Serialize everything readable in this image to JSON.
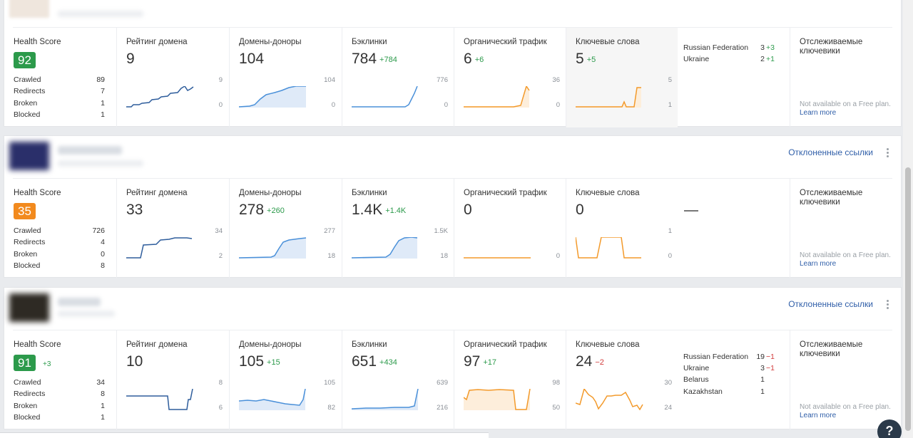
{
  "header": {
    "disavow_label": "Отклоненные ссылки"
  },
  "labels": {
    "health_score": "Health Score",
    "domain_rating": "Рейтинг домена",
    "ref_domains": "Домены-доноры",
    "backlinks": "Бэклинки",
    "organic_traffic": "Органический трафик",
    "keywords": "Ключевые слова",
    "tracked_keywords": "Отслеживаемые ключевики",
    "not_available": "Not available on a Free plan.",
    "learn_more": "Learn more",
    "crawled": "Crawled",
    "redirects": "Redirects",
    "broken": "Broken",
    "blocked": "Blocked"
  },
  "colors": {
    "green": "#2c9a4b",
    "orange": "#f28a1e",
    "blue_dark": "#2e5d9c",
    "blue_light": "#4a90d9",
    "traffic_orange": "#f39a2b",
    "red": "#d23c3c"
  },
  "projects": [
    {
      "health": {
        "score": "92",
        "delta": "",
        "color": "#2c9a4b",
        "crawled": "89",
        "redirects": "7",
        "broken": "1",
        "blocked": "1"
      },
      "dr": {
        "value": "9",
        "delta": "",
        "tick_max": "9",
        "tick_min": "0"
      },
      "rd": {
        "value": "104",
        "delta": "",
        "tick_max": "104",
        "tick_min": "0"
      },
      "bl": {
        "value": "784",
        "delta": "+784",
        "tick_max": "776",
        "tick_min": "0"
      },
      "ot": {
        "value": "6",
        "delta": "+6",
        "tick_max": "36",
        "tick_min": "0"
      },
      "kw": {
        "value": "5",
        "delta": "+5",
        "tick_max": "5",
        "tick_min": "1"
      },
      "countries": [
        {
          "name": "Russian Federation",
          "value": "3",
          "delta": "+3",
          "dir": "pos"
        },
        {
          "name": "Ukraine",
          "value": "2",
          "delta": "+1",
          "dir": "pos"
        }
      ]
    },
    {
      "health": {
        "score": "35",
        "delta": "",
        "color": "#f28a1e",
        "crawled": "726",
        "redirects": "4",
        "broken": "0",
        "blocked": "8"
      },
      "dr": {
        "value": "33",
        "delta": "",
        "tick_max": "34",
        "tick_min": "2"
      },
      "rd": {
        "value": "278",
        "delta": "+260",
        "tick_max": "277",
        "tick_min": "18"
      },
      "bl": {
        "value": "1.4K",
        "delta": "+1.4K",
        "tick_max": "1.5K",
        "tick_min": "18"
      },
      "ot": {
        "value": "0",
        "delta": "",
        "tick_max": "",
        "tick_min": "0"
      },
      "kw": {
        "value": "0",
        "delta": "",
        "tick_max": "1",
        "tick_min": "0"
      },
      "countries": []
    },
    {
      "health": {
        "score": "91",
        "delta": "+3",
        "color": "#2c9a4b",
        "crawled": "34",
        "redirects": "8",
        "broken": "1",
        "blocked": "1"
      },
      "dr": {
        "value": "10",
        "delta": "",
        "tick_max": "8",
        "tick_min": "6"
      },
      "rd": {
        "value": "105",
        "delta": "+15",
        "tick_max": "105",
        "tick_min": "82"
      },
      "bl": {
        "value": "651",
        "delta": "+434",
        "tick_max": "639",
        "tick_min": "216"
      },
      "ot": {
        "value": "97",
        "delta": "+17",
        "tick_max": "98",
        "tick_min": "50"
      },
      "kw": {
        "value": "24",
        "delta": "−2",
        "tick_max": "30",
        "tick_min": "24"
      },
      "countries": [
        {
          "name": "Russian Federation",
          "value": "19",
          "delta": "−1",
          "dir": "neg"
        },
        {
          "name": "Ukraine",
          "value": "3",
          "delta": "−1",
          "dir": "neg"
        },
        {
          "name": "Belarus",
          "value": "1",
          "delta": "",
          "dir": ""
        },
        {
          "name": "Kazakhstan",
          "value": "1",
          "delta": "",
          "dir": ""
        }
      ]
    }
  ],
  "help_label": "?"
}
